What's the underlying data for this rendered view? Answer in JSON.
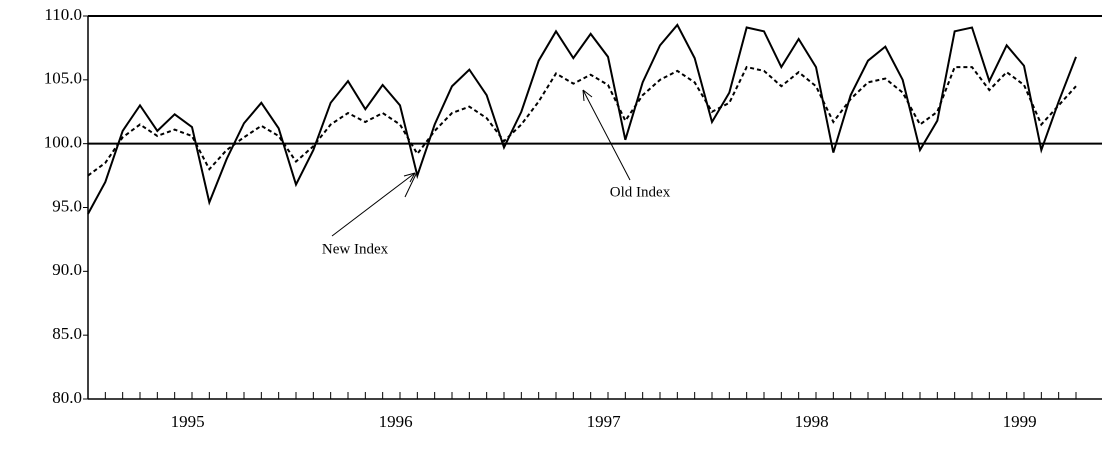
{
  "chart_data": {
    "type": "line",
    "x": [
      0,
      1,
      2,
      3,
      4,
      5,
      6,
      7,
      8,
      9,
      10,
      11,
      12,
      13,
      14,
      15,
      16,
      17,
      18,
      19,
      20,
      21,
      22,
      23,
      24,
      25,
      26,
      27,
      28,
      29,
      30,
      31,
      32,
      33,
      34,
      35,
      36,
      37,
      38,
      39,
      40,
      41,
      42,
      43,
      44,
      45,
      46,
      47,
      48,
      49,
      50,
      51,
      52,
      53,
      54,
      55,
      56,
      57
    ],
    "series": [
      {
        "name": "New Index",
        "color": "#000000",
        "dash": false,
        "values": [
          94.5,
          97,
          101,
          103,
          101,
          102.3,
          101.3,
          95.4,
          98.8,
          101.6,
          103.2,
          101.2,
          96.8,
          99.5,
          103.2,
          104.9,
          102.7,
          104.6,
          103,
          97.5,
          101.5,
          104.5,
          105.8,
          103.8,
          99.7,
          102.5,
          106.5,
          108.8,
          106.7,
          108.6,
          106.8,
          100.3,
          104.8,
          107.7,
          109.3,
          106.7,
          101.7,
          104,
          109.1,
          108.8,
          106,
          108.2,
          106,
          99.3,
          103.8,
          106.5,
          107.6,
          105,
          99.5,
          101.8,
          108.8,
          109.1,
          104.9,
          107.7,
          106.1,
          99.5,
          103.3,
          106.8
        ]
      },
      {
        "name": "Old Index",
        "color": "#000000",
        "dash": true,
        "values": [
          97.5,
          98.5,
          100.5,
          101.5,
          100.6,
          101.1,
          100.6,
          98,
          99.5,
          100.5,
          101.4,
          100.6,
          98.6,
          99.8,
          101.5,
          102.4,
          101.7,
          102.4,
          101.5,
          99.2,
          101,
          102.4,
          102.9,
          102,
          100.2,
          101.5,
          103.3,
          105.5,
          104.7,
          105.4,
          104.6,
          101.8,
          103.8,
          105,
          105.7,
          104.8,
          102.5,
          103.2,
          106,
          105.7,
          104.5,
          105.6,
          104.5,
          101.7,
          103.5,
          104.8,
          105.1,
          104,
          101.5,
          102.5,
          106,
          106,
          104.2,
          105.6,
          104.6,
          101.5,
          103,
          104.5
        ]
      }
    ],
    "xlim": [
      0,
      58.5
    ],
    "xticks": [
      {
        "value": 5.75,
        "label": "1995"
      },
      {
        "value": 17.75,
        "label": "1996"
      },
      {
        "value": 29.75,
        "label": "1997"
      },
      {
        "value": 41.75,
        "label": "1998"
      },
      {
        "value": 53.75,
        "label": "1999"
      }
    ],
    "ylim": [
      80,
      110
    ],
    "yticks": [
      {
        "value": 80,
        "label": "80.0"
      },
      {
        "value": 85,
        "label": "85.0"
      },
      {
        "value": 90,
        "label": "90.0"
      },
      {
        "value": 95,
        "label": "95.0"
      },
      {
        "value": 100,
        "label": "100.0"
      },
      {
        "value": 105,
        "label": "105.0"
      },
      {
        "value": 110,
        "label": "110.0"
      }
    ],
    "reference_line": 100,
    "annotations": [
      {
        "text": "New Index"
      },
      {
        "text": "Old Index"
      }
    ]
  }
}
